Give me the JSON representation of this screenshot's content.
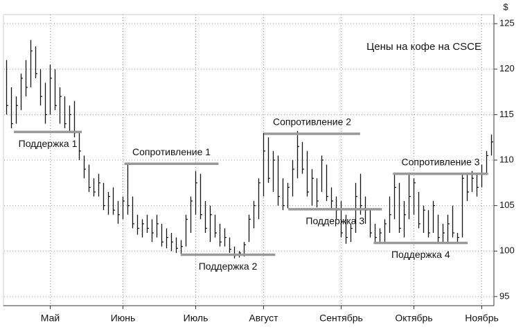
{
  "chart_data": {
    "type": "ohlc",
    "title": "Цены на кофе на CSCE",
    "y_axis_label": "$",
    "categories": [
      null,
      null,
      null,
      null,
      null,
      null,
      null,
      null,
      null,
      "Май",
      null,
      null,
      null,
      null,
      null,
      null,
      null,
      null,
      null,
      null,
      null,
      null,
      null,
      null,
      "Июнь",
      null,
      null,
      null,
      null,
      null,
      null,
      null,
      null,
      null,
      null,
      null,
      null,
      null,
      null,
      "Июль",
      null,
      null,
      null,
      null,
      null,
      null,
      null,
      null,
      null,
      null,
      null,
      null,
      null,
      "Август",
      null,
      null,
      null,
      null,
      null,
      null,
      null,
      null,
      null,
      null,
      null,
      null,
      null,
      null,
      null,
      "Сентябрь",
      null,
      null,
      null,
      null,
      null,
      null,
      null,
      null,
      null,
      null,
      null,
      null,
      null,
      null,
      "Октябрь",
      null,
      null,
      null,
      null,
      null,
      null,
      null,
      null,
      null,
      null,
      null,
      null,
      null,
      "Ноябрь",
      null,
      null
    ],
    "high": [
      121,
      118,
      117,
      119.5,
      121,
      123.2,
      122.5,
      120,
      118.5,
      120.5,
      120,
      118,
      117,
      116,
      116.5,
      113,
      110.5,
      109.5,
      108,
      108.5,
      107.5,
      106.5,
      107,
      105.5,
      106,
      109.5,
      106,
      104,
      103.5,
      104,
      103.5,
      104,
      103,
      102.5,
      102,
      101.5,
      101.2,
      104,
      106,
      108.8,
      108.5,
      105.5,
      105,
      104,
      103,
      102.5,
      101.5,
      100.5,
      100,
      101,
      104,
      105.5,
      108,
      113,
      112.5,
      111,
      110.5,
      108,
      107.5,
      110,
      113.2,
      112,
      111,
      109,
      108,
      110.5,
      109.5,
      107,
      106,
      105.5,
      104,
      103,
      107.5,
      108.5,
      106,
      104.5,
      103,
      102.5,
      103.5,
      106,
      108.5,
      107.5,
      105.5,
      108.5,
      108,
      106.5,
      105,
      104.5,
      105.5,
      104,
      103,
      104,
      105,
      102,
      108.5,
      108.5,
      108.8,
      108.5,
      109.5,
      111,
      112.8
    ],
    "low": [
      115,
      113.5,
      114,
      115.5,
      117,
      118,
      119,
      116,
      114,
      115,
      115.5,
      114,
      113.5,
      113,
      112.5,
      110,
      108,
      106.5,
      106,
      106,
      104.5,
      104,
      104,
      103,
      103.5,
      104,
      102.5,
      101.8,
      101.5,
      102,
      101,
      101.5,
      100.5,
      100.3,
      100,
      99.8,
      99.7,
      100.5,
      102,
      104,
      103.5,
      102,
      101,
      101.5,
      100.5,
      100.5,
      99.8,
      99.2,
      99.3,
      99.4,
      101,
      102.5,
      103.5,
      106,
      107.5,
      106.5,
      105,
      104.5,
      104.7,
      106,
      108,
      108.5,
      106,
      105,
      104.8,
      106.5,
      105.5,
      104.7,
      103.5,
      101.5,
      100.8,
      101,
      102,
      104,
      103,
      101.5,
      100.8,
      101,
      100.9,
      102,
      103.5,
      102,
      101.5,
      103.5,
      104,
      102.5,
      102,
      101.5,
      102,
      101,
      100.9,
      101,
      101.5,
      100.9,
      101.5,
      105.5,
      106.5,
      106,
      107,
      108.5,
      110.5
    ],
    "close": [
      116,
      114,
      116,
      119,
      118,
      122,
      119.5,
      117,
      115,
      119,
      116,
      117,
      114,
      115,
      113,
      111,
      109,
      107,
      106.5,
      107.5,
      105,
      106,
      104.5,
      104,
      105.5,
      105,
      103,
      102.5,
      103,
      102.5,
      102,
      103,
      101,
      101.5,
      101,
      100.3,
      100.5,
      103.5,
      105.5,
      107.5,
      104,
      102.5,
      104,
      102,
      101,
      101.5,
      100.2,
      99.5,
      99.8,
      100.7,
      103.5,
      105,
      107.5,
      111,
      108,
      110,
      106,
      105,
      107,
      109,
      111.5,
      109,
      106.5,
      108,
      105.5,
      110,
      106,
      105.5,
      104.5,
      102,
      101.5,
      102.5,
      106,
      105,
      104.5,
      102,
      101.5,
      102,
      103,
      104,
      107,
      102.5,
      104,
      106,
      107.5,
      103,
      104.5,
      102,
      105,
      101.5,
      102,
      103,
      102,
      101.5,
      108,
      106.5,
      108,
      107,
      108.5,
      110.5,
      112
    ],
    "color": "#111111",
    "ylim": [
      94,
      126
    ],
    "yticks": [
      95,
      100,
      105,
      110,
      115,
      120,
      125
    ],
    "grid": true,
    "levels": [
      {
        "label": "Поддержка 1",
        "value": 113.1,
        "x": [
          1.5,
          15.5
        ],
        "label_position": "below"
      },
      {
        "label": "Сопротивление 1",
        "value": 109.6,
        "x": [
          24.3,
          43.7
        ],
        "label_position": "above"
      },
      {
        "label": "Поддержка 2",
        "value": 99.6,
        "x": [
          35.9,
          55.4
        ],
        "label_position": "below"
      },
      {
        "label": "Сопротивление 2",
        "value": 112.9,
        "x": [
          53.1,
          72.9
        ],
        "label_position": "above"
      },
      {
        "label": "Поддержка 3",
        "value": 104.6,
        "x": [
          58.1,
          77.4
        ],
        "label_position": "below"
      },
      {
        "label": "Поддержка 4",
        "value": 100.9,
        "x": [
          75.7,
          95.1
        ],
        "label_position": "below"
      },
      {
        "label": "Сопротивление 3",
        "value": 108.5,
        "x": [
          79.7,
          99.3
        ],
        "label_position": "above"
      }
    ],
    "level_color": "#999999"
  }
}
